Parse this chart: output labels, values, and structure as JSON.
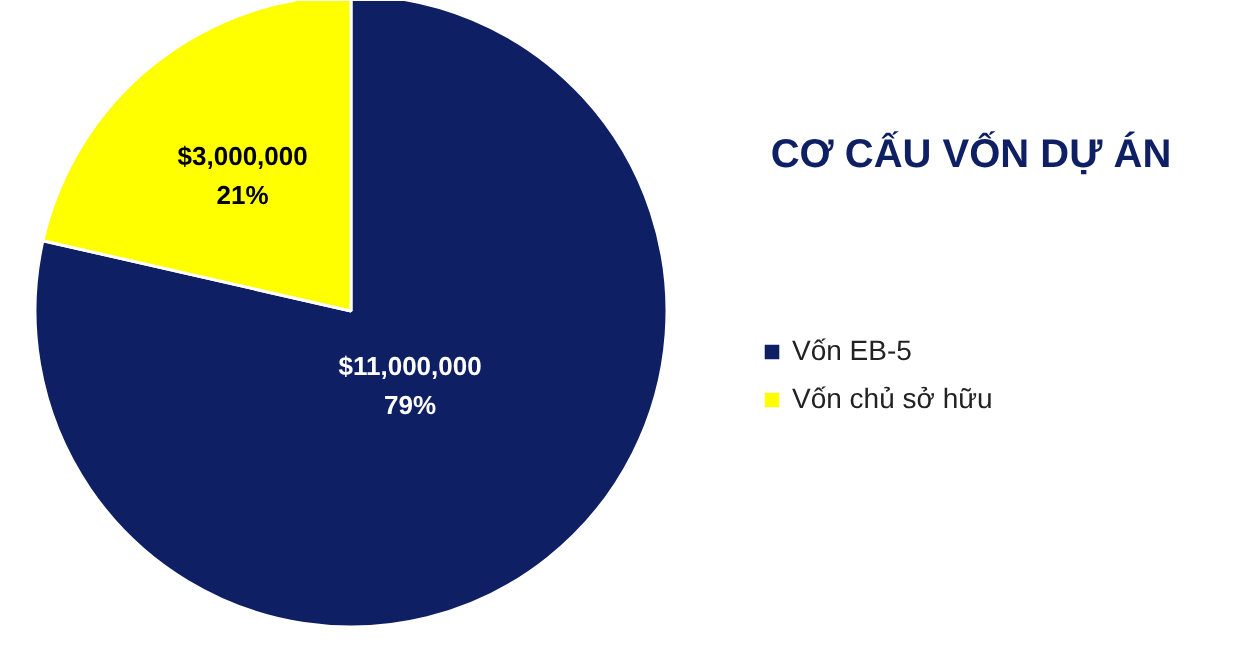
{
  "chart_data": {
    "type": "pie",
    "title": "CƠ CẤU VỐN DỰ ÁN",
    "categories": [
      "Vốn EB-5",
      "Vốn chủ sở hữu"
    ],
    "values": [
      11000000,
      3000000
    ],
    "colors": [
      "#0f1f63",
      "#ffff00"
    ],
    "value_labels": [
      "$11,000,000\n79%",
      "$3,000,000\n21%"
    ],
    "legend": "right"
  }
}
